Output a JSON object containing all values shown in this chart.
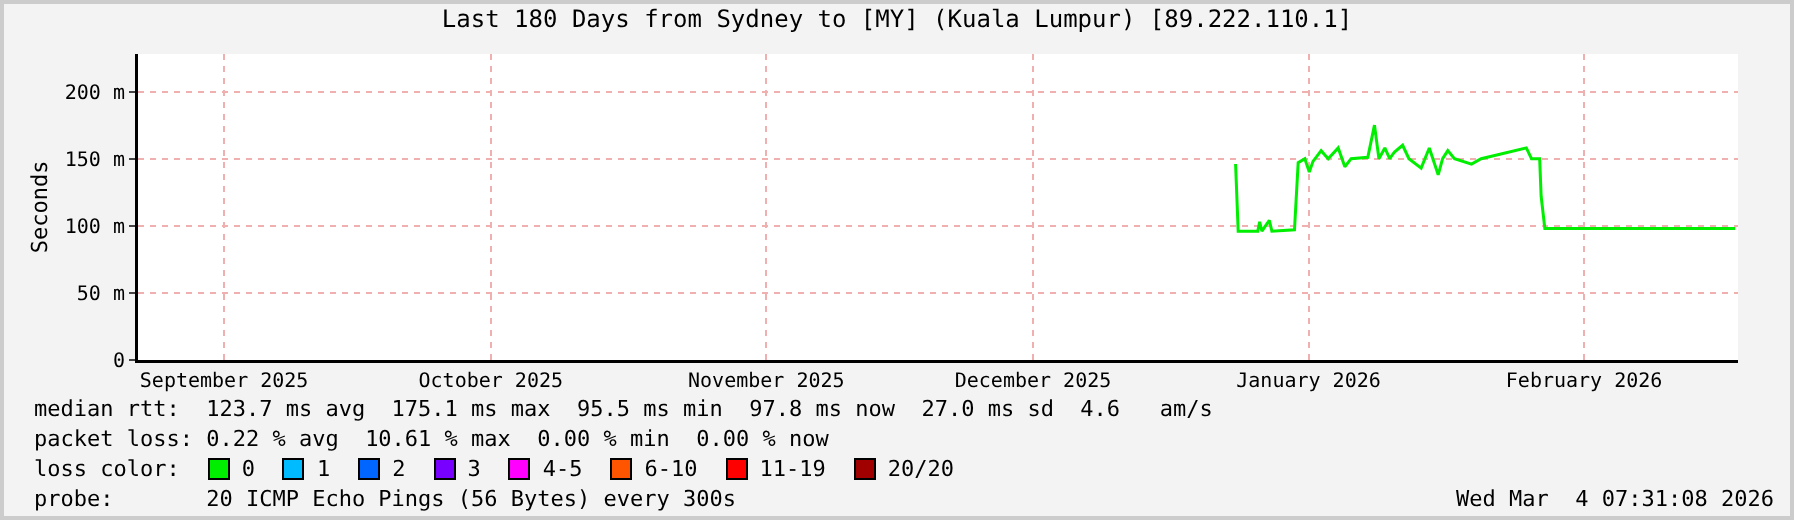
{
  "chart_data": {
    "type": "line",
    "title": "Last 180 Days from Sydney to [MY] (Kuala Lumpur) [89.222.110.1]",
    "ylabel": "Seconds",
    "x": [
      "2026-01-06T19:00",
      "2026-01-07T02:00",
      "2026-01-09T07:00",
      "2026-01-09T12:00",
      "2026-01-09T18:00",
      "2026-01-10T14:00",
      "2026-01-10T21:00",
      "2026-01-13T10:00",
      "2026-01-13T20:00",
      "2026-01-14T14:00",
      "2026-01-15T02:00",
      "2026-01-15T12:00",
      "2026-01-16T10:00",
      "2026-01-17T05:00",
      "2026-01-18T08:00",
      "2026-01-19T02:00",
      "2026-01-19T19:00",
      "2026-01-21T16:00",
      "2026-01-22T10:00",
      "2026-01-22T22:00",
      "2026-01-23T14:00",
      "2026-01-24T03:00",
      "2026-01-24T16:00",
      "2026-01-25T14:00",
      "2026-01-26T07:00",
      "2026-01-27T16:00",
      "2026-01-28T14:00",
      "2026-01-29T14:00",
      "2026-01-30T02:00",
      "2026-01-30T16:00",
      "2026-01-31T10:00",
      "2026-02-02T08:00",
      "2026-02-03T10:00",
      "2026-02-08T12:00",
      "2026-02-09T02:00",
      "2026-02-10T00:00",
      "2026-02-10T04:00",
      "2026-02-10T14:00",
      "2026-03-04T00:00"
    ],
    "series": [
      {
        "name": "0",
        "color": "#00ee00",
        "values": [
          146,
          96,
          96,
          103,
          96,
          104,
          96,
          97,
          147,
          150,
          140,
          148,
          156,
          150,
          158,
          144,
          150,
          151,
          175,
          150,
          158,
          150,
          155,
          160,
          150,
          143,
          158,
          138,
          150,
          156,
          150,
          146,
          150,
          158,
          150,
          150,
          122,
          98,
          98
        ]
      },
      {
        "name": "1",
        "color": "#00bbff",
        "values": [
          null,
          null,
          null,
          null,
          null,
          null,
          null,
          null,
          null,
          null,
          null,
          null,
          null,
          null,
          null,
          null,
          null,
          null,
          null,
          null,
          null,
          null,
          null,
          null,
          null,
          null,
          null,
          null,
          null,
          null,
          null,
          null,
          null,
          null,
          null,
          null,
          null,
          null,
          null
        ]
      },
      {
        "name": "2",
        "color": "#0066ff",
        "values": [
          null,
          null,
          null,
          null,
          null,
          null,
          null,
          null,
          null,
          null,
          null,
          null,
          null,
          null,
          null,
          null,
          null,
          null,
          null,
          null,
          null,
          null,
          null,
          null,
          null,
          null,
          null,
          null,
          null,
          null,
          null,
          null,
          null,
          null,
          null,
          null,
          null,
          null,
          null
        ]
      },
      {
        "name": "3",
        "color": "#7700ff",
        "values": [
          null,
          null,
          null,
          null,
          null,
          null,
          null,
          null,
          null,
          null,
          null,
          null,
          null,
          null,
          null,
          null,
          null,
          null,
          null,
          null,
          null,
          null,
          null,
          null,
          null,
          null,
          null,
          null,
          null,
          null,
          null,
          null,
          null,
          null,
          null,
          null,
          null,
          null,
          null
        ]
      },
      {
        "name": "4-5",
        "color": "#ff00ff",
        "values": [
          null,
          null,
          null,
          null,
          null,
          null,
          null,
          null,
          null,
          null,
          null,
          null,
          null,
          null,
          null,
          null,
          null,
          null,
          null,
          null,
          null,
          null,
          null,
          null,
          null,
          null,
          null,
          null,
          null,
          null,
          null,
          null,
          null,
          null,
          null,
          null,
          null,
          null,
          null
        ]
      },
      {
        "name": "6-10",
        "color": "#ff5500",
        "values": [
          null,
          null,
          null,
          null,
          null,
          null,
          null,
          null,
          null,
          null,
          null,
          null,
          null,
          null,
          null,
          null,
          null,
          null,
          null,
          null,
          null,
          null,
          null,
          null,
          null,
          null,
          null,
          null,
          null,
          null,
          null,
          null,
          null,
          null,
          null,
          null,
          null,
          null,
          null
        ]
      },
      {
        "name": "11-19",
        "color": "#ff0000",
        "values": [
          null,
          null,
          null,
          null,
          null,
          null,
          null,
          null,
          null,
          null,
          null,
          null,
          null,
          null,
          null,
          null,
          null,
          null,
          null,
          null,
          null,
          null,
          null,
          null,
          null,
          null,
          null,
          null,
          null,
          null,
          null,
          null,
          null,
          null,
          null,
          null,
          null,
          null,
          null
        ]
      },
      {
        "name": "20/20",
        "color": "#a10000",
        "values": [
          null,
          null,
          null,
          null,
          null,
          null,
          null,
          null,
          null,
          null,
          null,
          null,
          null,
          null,
          null,
          null,
          null,
          null,
          null,
          null,
          null,
          null,
          null,
          null,
          null,
          null,
          null,
          null,
          null,
          null,
          null,
          null,
          null,
          null,
          null,
          null,
          null,
          null,
          null
        ]
      }
    ],
    "legend": "bottom",
    "legend_title": "loss color:",
    "xlim": [
      "2025-09-05T07:31",
      "2026-03-04T07:31"
    ],
    "xticks": [
      {
        "value": "2025-09-15",
        "label": "September 2025"
      },
      {
        "value": "2025-10-15",
        "label": "October 2025"
      },
      {
        "value": "2025-11-15",
        "label": "November 2025"
      },
      {
        "value": "2025-12-15",
        "label": "December 2025"
      },
      {
        "value": "2026-01-15",
        "label": "January 2026"
      },
      {
        "value": "2026-02-15",
        "label": "February 2026"
      }
    ],
    "ylim": [
      0,
      228
    ],
    "yticks": [
      0,
      {
        "value": 50,
        "label": "50 m"
      },
      {
        "value": 100,
        "label": "100 m"
      },
      {
        "value": 150,
        "label": "150 m"
      },
      {
        "value": 200,
        "label": "200 m"
      }
    ],
    "grid": true,
    "marker": "none",
    "line_style": "solid",
    "annotations": [
      "median rtt:  123.7 ms avg  175.1 ms max  95.5 ms min  97.8 ms now  27.0 ms sd  4.6   am/s",
      "packet loss: 0.22 % avg  10.61 % max  0.00 % min  0.00 % now",
      "probe:       20 ICMP Echo Pings (56 Bytes) every 300s",
      "Wed Mar  4 07:31:08 2026"
    ]
  }
}
